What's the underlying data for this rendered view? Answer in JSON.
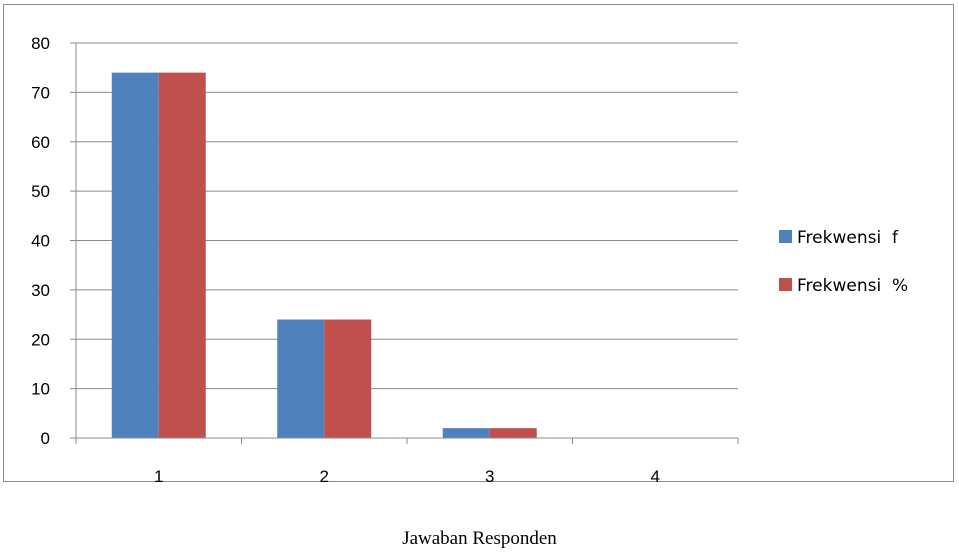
{
  "caption": "Jawaban Responden",
  "chart_data": {
    "type": "bar",
    "categories": [
      "1",
      "2",
      "3",
      "4"
    ],
    "series": [
      {
        "name": "Frekwensi  f",
        "values": [
          74,
          24,
          2,
          0
        ],
        "color": "#4f81bd"
      },
      {
        "name": "Frekwensi  %",
        "values": [
          74,
          24,
          2,
          0
        ],
        "color": "#c0504d"
      }
    ],
    "ylim": [
      0,
      80
    ],
    "yticks": [
      0,
      10,
      20,
      30,
      40,
      50,
      60,
      70,
      80
    ],
    "grid": true,
    "legend_position": "right"
  }
}
